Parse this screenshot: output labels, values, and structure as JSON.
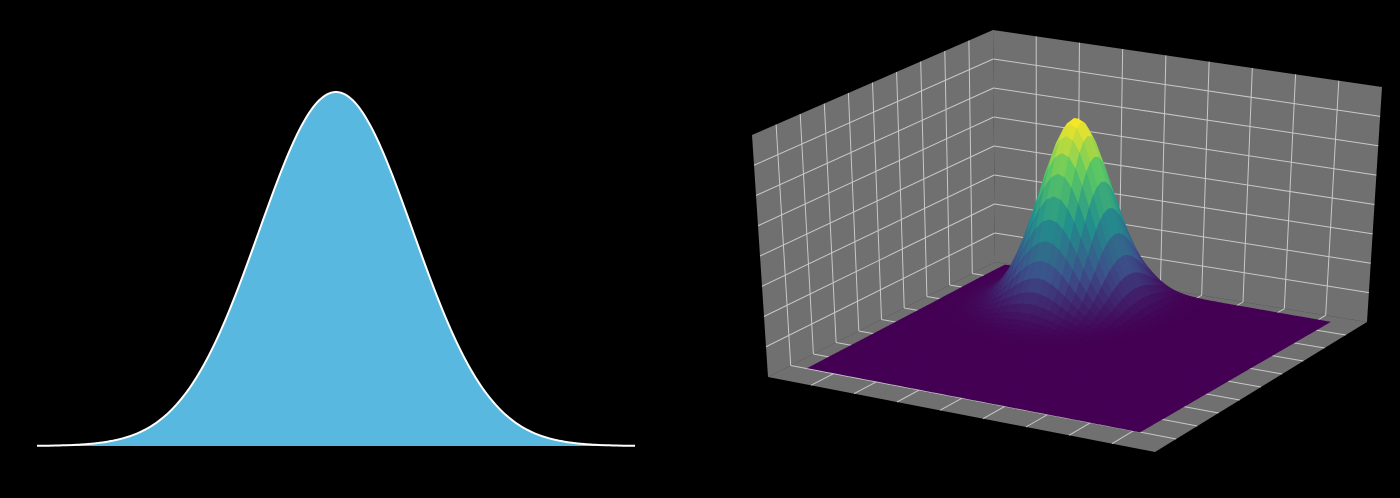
{
  "panels": [
    {
      "kind": "gaussian-area",
      "fill": "#58b8e0",
      "stroke": "#ffffff"
    },
    {
      "kind": "gaussian-surface",
      "wall": "#707070",
      "grid": "#c8c8c8",
      "colormap": [
        "#440154",
        "#3b528b",
        "#21918c",
        "#5ec962",
        "#fde725"
      ]
    }
  ]
}
